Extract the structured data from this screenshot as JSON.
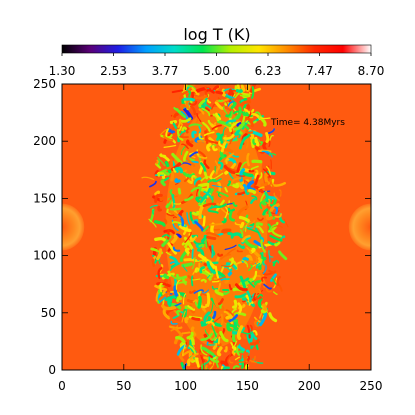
{
  "chart_data": {
    "type": "heatmap",
    "title": "",
    "colorbar": {
      "label": "log T (K)",
      "ticks": [
        "1.30",
        "2.53",
        "3.77",
        "5.00",
        "6.23",
        "7.47",
        "8.70"
      ],
      "range": [
        1.3,
        8.7
      ]
    },
    "annotation": "Time= 4.38Myrs",
    "xlim": [
      0,
      250
    ],
    "ylim": [
      0,
      250
    ],
    "x_ticks": [
      "0",
      "50",
      "100",
      "150",
      "200",
      "250"
    ],
    "y_ticks": [
      "0",
      "50",
      "100",
      "150",
      "200",
      "250"
    ],
    "xlabel": "",
    "ylabel": "",
    "background_value": 7.9,
    "background_color": "#ff5a10",
    "features": [
      {
        "kind": "turbulent_column",
        "x_center": 125,
        "x_halfwidth": 55,
        "y_range": [
          0,
          250
        ],
        "value_range": [
          4.0,
          7.5
        ]
      },
      {
        "kind": "hot_bubble",
        "x": 0,
        "y": 125,
        "radius": 18,
        "value": 7.2
      },
      {
        "kind": "hot_bubble",
        "x": 250,
        "y": 125,
        "radius": 18,
        "value": 7.2
      }
    ]
  },
  "colors": {
    "colormap_stops": [
      "#000000",
      "#5a0078",
      "#1e1ee6",
      "#00a0ff",
      "#00dcc8",
      "#00e650",
      "#b4f000",
      "#ffe600",
      "#ff8c00",
      "#ff2800",
      "#ff0000",
      "#ffffff"
    ]
  }
}
